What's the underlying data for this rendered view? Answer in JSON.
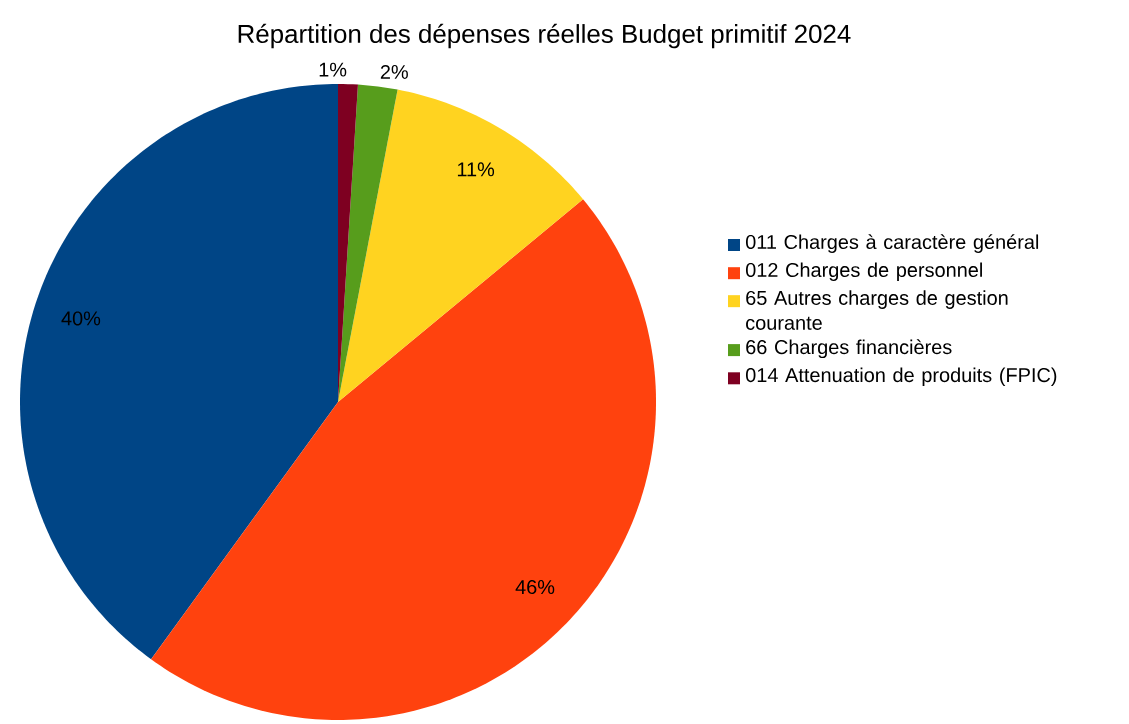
{
  "chart_data": {
    "type": "pie",
    "title": "Répartition des dépenses réelles Budget primitif 2024",
    "categories": [
      "011 Charges à caractère général",
      "012 Charges de personnel",
      "65 Autres charges de gestion courante",
      "66 Charges financières",
      "014 Attenuation de produits (FPIC)"
    ],
    "values": [
      40,
      46,
      11,
      2,
      1
    ],
    "value_labels": [
      "40%",
      "46%",
      "11%",
      "2%",
      "1%"
    ],
    "colors": [
      "#004586",
      "#ff420e",
      "#ffd320",
      "#579d1c",
      "#7e0021"
    ],
    "legend": "right"
  }
}
